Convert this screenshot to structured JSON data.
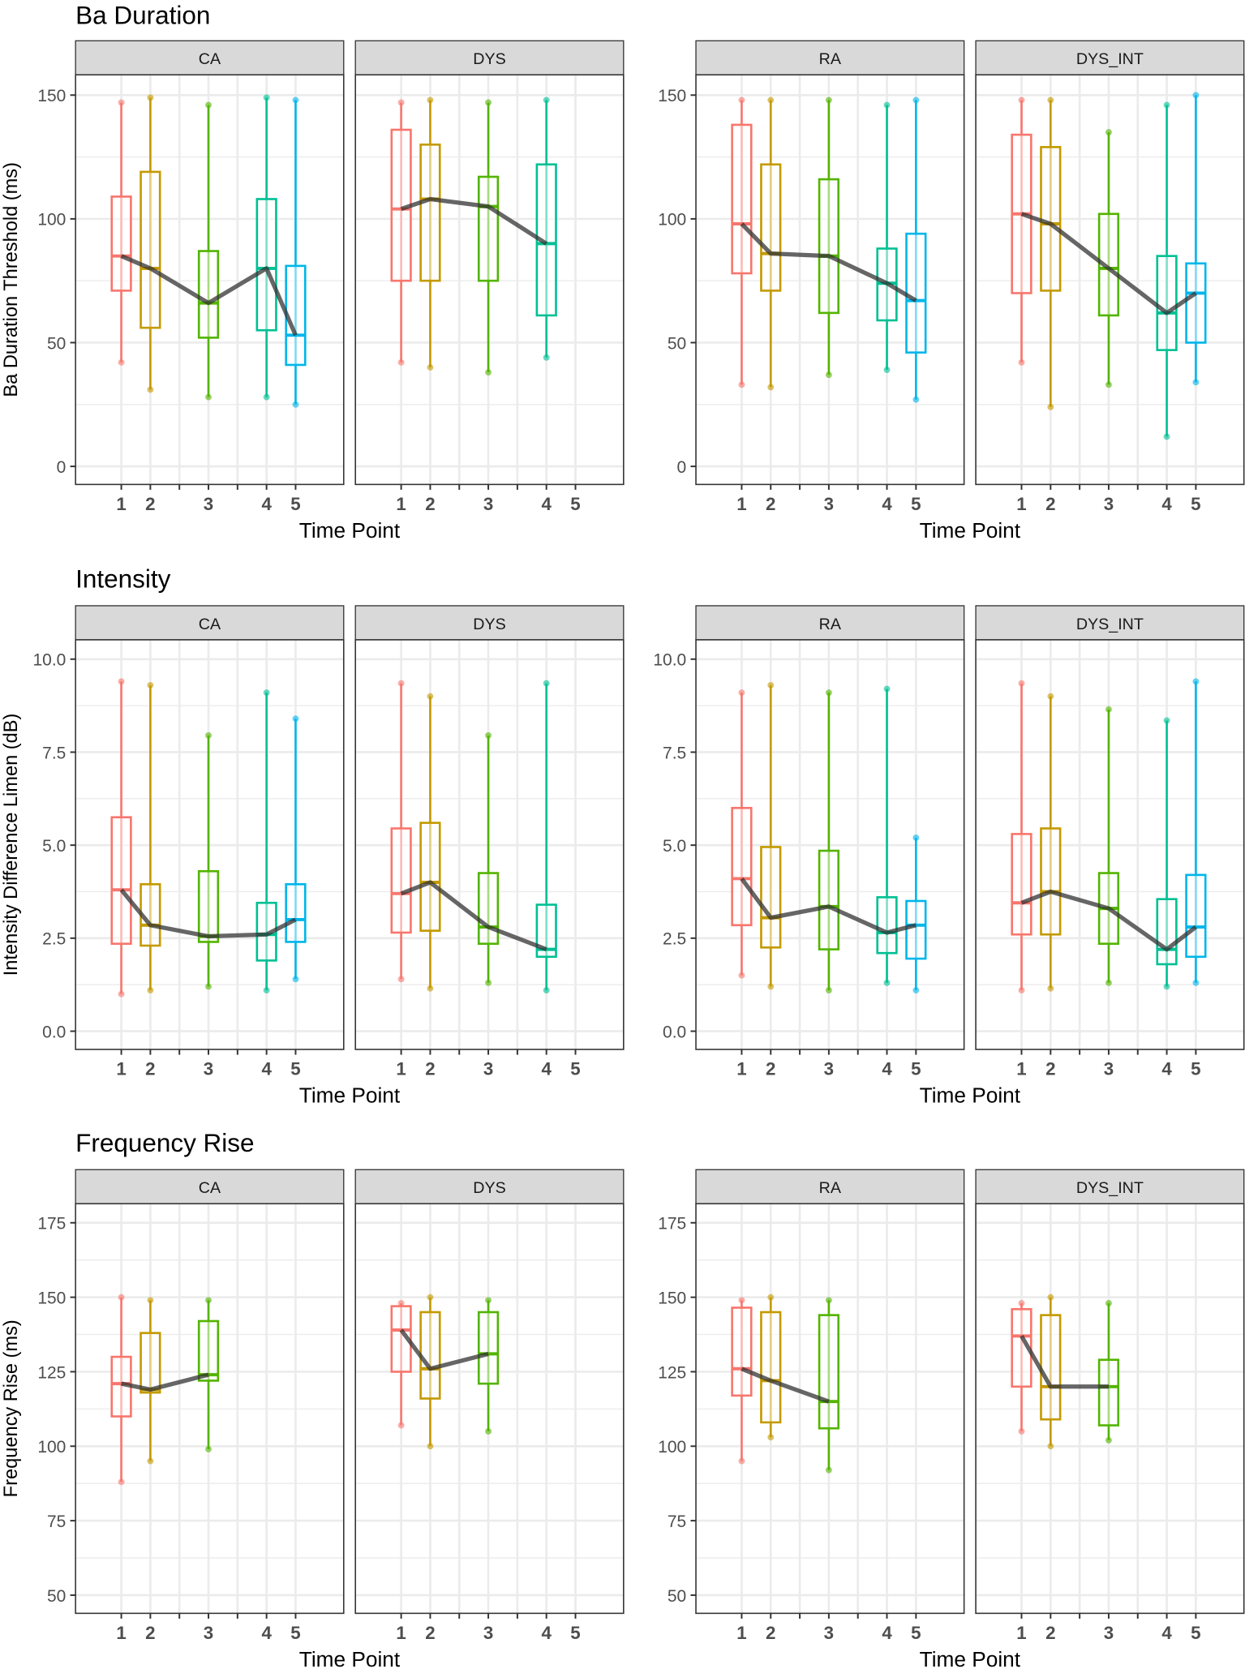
{
  "colors": {
    "time_1": "#F8766D",
    "time_2": "#C49A00",
    "time_3": "#53B400",
    "time_4": "#00C094",
    "time_5": "#00B6EB",
    "median_line": "#333333",
    "strip_bg": "#D9D9D9",
    "grid": "#EBEBEB"
  },
  "x_axis": {
    "label": "Time Point",
    "ticks": [
      "1",
      "2",
      "3",
      "4",
      "5"
    ]
  },
  "chart_data": [
    {
      "type": "boxplot",
      "title": "Ba Duration",
      "ylabel": "Ba Duration Threshold (ms)",
      "ylim": [
        -7.3,
        158.2
      ],
      "yticks": [
        "0",
        "50",
        "100",
        "150"
      ],
      "ytick_values": [
        0,
        50,
        100,
        150
      ],
      "minor_grid": [
        25,
        75,
        125
      ],
      "panels": [
        {
          "name": "CA",
          "boxes": [
            {
              "time": 1,
              "min": 42,
              "q1": 71,
              "median": 85,
              "q3": 109,
              "max": 147
            },
            {
              "time": 2,
              "min": 31,
              "q1": 56,
              "median": 80,
              "q3": 119,
              "max": 149
            },
            {
              "time": 3,
              "min": 28,
              "q1": 52,
              "median": 66,
              "q3": 87,
              "max": 146
            },
            {
              "time": 4,
              "min": 28,
              "q1": 55,
              "median": 80,
              "q3": 108,
              "max": 149
            },
            {
              "time": 5,
              "min": 25,
              "q1": 41,
              "median": 53,
              "q3": 81,
              "max": 148
            }
          ]
        },
        {
          "name": "DYS",
          "boxes": [
            {
              "time": 1,
              "min": 42,
              "q1": 75,
              "median": 104,
              "q3": 136,
              "max": 147
            },
            {
              "time": 2,
              "min": 40,
              "q1": 75,
              "median": 108,
              "q3": 130,
              "max": 148
            },
            {
              "time": 3,
              "min": 38,
              "q1": 75,
              "median": 105,
              "q3": 117,
              "max": 147
            },
            {
              "time": 4,
              "min": 44,
              "q1": 61,
              "median": 90,
              "q3": 122,
              "max": 148
            }
          ]
        },
        {
          "name": "RA",
          "boxes": [
            {
              "time": 1,
              "min": 33,
              "q1": 78,
              "median": 98,
              "q3": 138,
              "max": 148
            },
            {
              "time": 2,
              "min": 32,
              "q1": 71,
              "median": 86,
              "q3": 122,
              "max": 148
            },
            {
              "time": 3,
              "min": 37,
              "q1": 62,
              "median": 85,
              "q3": 116,
              "max": 148
            },
            {
              "time": 4,
              "min": 39,
              "q1": 59,
              "median": 74,
              "q3": 88,
              "max": 146
            },
            {
              "time": 5,
              "min": 27,
              "q1": 46,
              "median": 67,
              "q3": 94,
              "max": 148
            }
          ]
        },
        {
          "name": "DYS_INT",
          "boxes": [
            {
              "time": 1,
              "min": 42,
              "q1": 70,
              "median": 102,
              "q3": 134,
              "max": 148
            },
            {
              "time": 2,
              "min": 24,
              "q1": 71,
              "median": 98,
              "q3": 129,
              "max": 148
            },
            {
              "time": 3,
              "min": 33,
              "q1": 61,
              "median": 80,
              "q3": 102,
              "max": 135
            },
            {
              "time": 4,
              "min": 12,
              "q1": 47,
              "median": 62,
              "q3": 85,
              "max": 146
            },
            {
              "time": 5,
              "min": 34,
              "q1": 50,
              "median": 70,
              "q3": 82,
              "max": 150
            }
          ]
        }
      ]
    },
    {
      "type": "boxplot",
      "title": "Intensity",
      "ylabel": "Intensity Difference Limen (dB)",
      "ylim": [
        -0.49,
        10.52
      ],
      "yticks": [
        "0.0",
        "2.5",
        "5.0",
        "7.5",
        "10.0"
      ],
      "ytick_values": [
        0,
        2.5,
        5,
        7.5,
        10
      ],
      "minor_grid": [
        1.25,
        3.75,
        6.25,
        8.75
      ],
      "panels": [
        {
          "name": "CA",
          "boxes": [
            {
              "time": 1,
              "min": 1.0,
              "q1": 2.35,
              "median": 3.8,
              "q3": 5.75,
              "max": 9.4
            },
            {
              "time": 2,
              "min": 1.1,
              "q1": 2.3,
              "median": 2.85,
              "q3": 3.95,
              "max": 9.3
            },
            {
              "time": 3,
              "min": 1.2,
              "q1": 2.4,
              "median": 2.55,
              "q3": 4.3,
              "max": 7.95
            },
            {
              "time": 4,
              "min": 1.1,
              "q1": 1.9,
              "median": 2.6,
              "q3": 3.45,
              "max": 9.1
            },
            {
              "time": 5,
              "min": 1.4,
              "q1": 2.4,
              "median": 3.0,
              "q3": 3.95,
              "max": 8.4
            }
          ]
        },
        {
          "name": "DYS",
          "boxes": [
            {
              "time": 1,
              "min": 1.4,
              "q1": 2.65,
              "median": 3.7,
              "q3": 5.45,
              "max": 9.35
            },
            {
              "time": 2,
              "min": 1.15,
              "q1": 2.7,
              "median": 4.0,
              "q3": 5.6,
              "max": 9.0
            },
            {
              "time": 3,
              "min": 1.3,
              "q1": 2.35,
              "median": 2.8,
              "q3": 4.25,
              "max": 7.95
            },
            {
              "time": 4,
              "min": 1.1,
              "q1": 2.0,
              "median": 2.2,
              "q3": 3.4,
              "max": 9.35
            }
          ]
        },
        {
          "name": "RA",
          "boxes": [
            {
              "time": 1,
              "min": 1.5,
              "q1": 2.85,
              "median": 4.1,
              "q3": 6.0,
              "max": 9.1
            },
            {
              "time": 2,
              "min": 1.2,
              "q1": 2.25,
              "median": 3.05,
              "q3": 4.95,
              "max": 9.3
            },
            {
              "time": 3,
              "min": 1.1,
              "q1": 2.2,
              "median": 3.35,
              "q3": 4.85,
              "max": 9.1
            },
            {
              "time": 4,
              "min": 1.3,
              "q1": 2.1,
              "median": 2.65,
              "q3": 3.6,
              "max": 9.2
            },
            {
              "time": 5,
              "min": 1.1,
              "q1": 1.95,
              "median": 2.85,
              "q3": 3.5,
              "max": 5.2
            }
          ]
        },
        {
          "name": "DYS_INT",
          "boxes": [
            {
              "time": 1,
              "min": 1.1,
              "q1": 2.6,
              "median": 3.45,
              "q3": 5.3,
              "max": 9.35
            },
            {
              "time": 2,
              "min": 1.15,
              "q1": 2.6,
              "median": 3.75,
              "q3": 5.45,
              "max": 9.0
            },
            {
              "time": 3,
              "min": 1.3,
              "q1": 2.35,
              "median": 3.3,
              "q3": 4.25,
              "max": 8.65
            },
            {
              "time": 4,
              "min": 1.2,
              "q1": 1.8,
              "median": 2.2,
              "q3": 3.55,
              "max": 8.35
            },
            {
              "time": 5,
              "min": 1.3,
              "q1": 2.0,
              "median": 2.8,
              "q3": 4.2,
              "max": 9.4
            }
          ]
        }
      ]
    },
    {
      "type": "boxplot",
      "title": "Frequency Rise",
      "ylabel": "Frequency Rise (ms)",
      "ylim": [
        43.9,
        181.4
      ],
      "yticks": [
        "50",
        "75",
        "100",
        "125",
        "150",
        "175"
      ],
      "ytick_values": [
        50,
        75,
        100,
        125,
        150,
        175
      ],
      "minor_grid": [
        62.5,
        87.5,
        112.5,
        137.5,
        162.5
      ],
      "panels": [
        {
          "name": "CA",
          "boxes": [
            {
              "time": 1,
              "min": 88,
              "q1": 110,
              "median": 121,
              "q3": 130,
              "max": 150
            },
            {
              "time": 2,
              "min": 95,
              "q1": 118,
              "median": 119,
              "q3": 138,
              "max": 149
            },
            {
              "time": 3,
              "min": 99,
              "q1": 122,
              "median": 124,
              "q3": 142,
              "max": 149
            }
          ]
        },
        {
          "name": "DYS",
          "boxes": [
            {
              "time": 1,
              "min": 107,
              "q1": 125,
              "median": 139,
              "q3": 147,
              "max": 148
            },
            {
              "time": 2,
              "min": 100,
              "q1": 116,
              "median": 126,
              "q3": 145,
              "max": 150
            },
            {
              "time": 3,
              "min": 105,
              "q1": 121,
              "median": 131,
              "q3": 145,
              "max": 149
            }
          ]
        },
        {
          "name": "RA",
          "boxes": [
            {
              "time": 1,
              "min": 95,
              "q1": 117,
              "median": 126,
              "q3": 146.5,
              "max": 149
            },
            {
              "time": 2,
              "min": 103,
              "q1": 108,
              "median": 122,
              "q3": 145,
              "max": 150
            },
            {
              "time": 3,
              "min": 92,
              "q1": 106,
              "median": 115,
              "q3": 144,
              "max": 149
            }
          ]
        },
        {
          "name": "DYS_INT",
          "boxes": [
            {
              "time": 1,
              "min": 105,
              "q1": 120,
              "median": 137,
              "q3": 146,
              "max": 148
            },
            {
              "time": 2,
              "min": 100,
              "q1": 109,
              "median": 120,
              "q3": 144,
              "max": 150
            },
            {
              "time": 3,
              "min": 102,
              "q1": 107,
              "median": 120,
              "q3": 129,
              "max": 148
            }
          ]
        }
      ]
    }
  ]
}
